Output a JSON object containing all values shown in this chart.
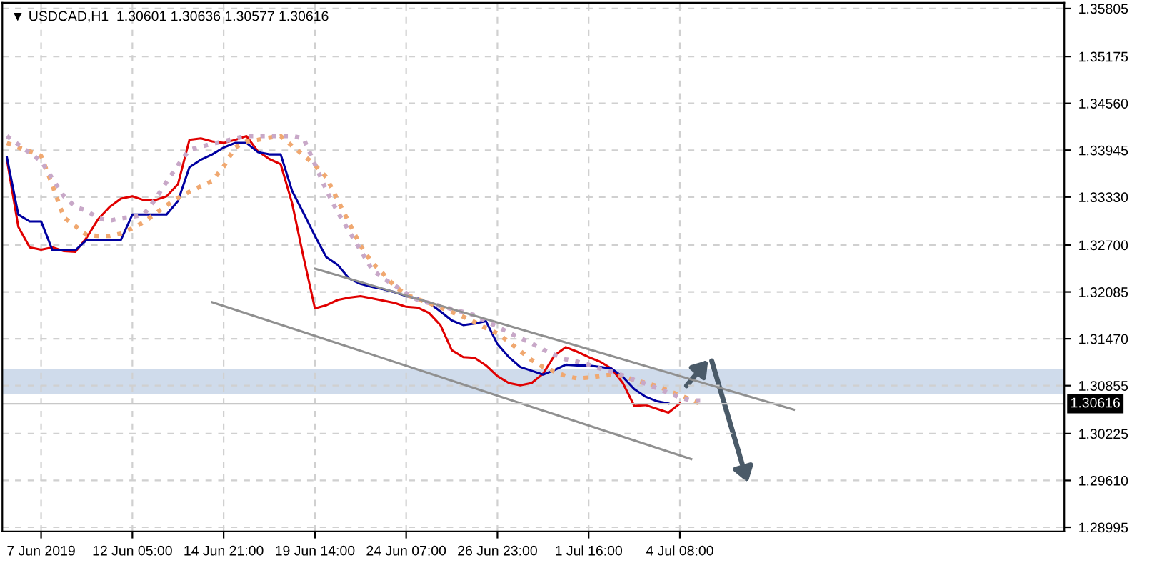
{
  "chart_data": {
    "type": "line",
    "title": "▼ USDCAD,H1  1.30601 1.30636 1.30577 1.30616",
    "categories": [
      null,
      null,
      null,
      "7 Jun 2019",
      null,
      null,
      null,
      null,
      null,
      null,
      null,
      "12 Jun 05:00",
      null,
      null,
      null,
      null,
      null,
      null,
      null,
      "14 Jun 21:00",
      null,
      null,
      null,
      null,
      null,
      null,
      null,
      "19 Jun 14:00",
      null,
      null,
      null,
      null,
      null,
      null,
      null,
      "24 Jun 07:00",
      null,
      null,
      null,
      null,
      null,
      null,
      null,
      "26 Jun 23:00",
      null,
      null,
      null,
      null,
      null,
      null,
      null,
      "1 Jul 16:00",
      null,
      null,
      null,
      null,
      null,
      null,
      null,
      "4 Jul 08:00",
      null,
      null,
      null,
      null,
      null,
      null,
      null,
      null,
      null,
      null,
      null,
      null,
      null,
      null,
      null,
      null,
      null,
      null,
      null,
      null,
      null,
      null,
      null,
      null,
      null,
      null,
      null,
      null,
      null,
      null,
      null,
      null,
      null
    ],
    "ylim": [
      1.2894,
      1.3588
    ],
    "yticks": [
      {
        "value": 1.35805,
        "label": "1.35805"
      },
      {
        "value": 1.35175,
        "label": "1.35175"
      },
      {
        "value": 1.3456,
        "label": "1.34560"
      },
      {
        "value": 1.33945,
        "label": "1.33945"
      },
      {
        "value": 1.3333,
        "label": "1.33330"
      },
      {
        "value": 1.327,
        "label": "1.32700"
      },
      {
        "value": 1.32085,
        "label": "1.32085"
      },
      {
        "value": 1.3147,
        "label": "1.31470"
      },
      {
        "value": 1.30855,
        "label": "1.30855"
      },
      {
        "value": 1.30225,
        "label": "1.30225"
      },
      {
        "value": 1.2961,
        "label": "1.29610"
      },
      {
        "value": 1.28995,
        "label": "1.28995"
      }
    ],
    "grid": true,
    "series": [
      {
        "color": "#e00000",
        "values": [
          1.3382,
          1.3294,
          1.3267,
          1.3264,
          1.3267,
          1.3262,
          1.3261,
          1.328,
          1.3304,
          1.332,
          1.3331,
          1.3334,
          1.3329,
          1.3329,
          1.3334,
          1.335,
          1.3408,
          1.341,
          1.3406,
          1.3404,
          1.3408,
          1.3413,
          1.3393,
          1.3383,
          1.3376,
          1.3325,
          1.3254,
          1.3187,
          1.3191,
          1.3198,
          1.3201,
          1.3203,
          1.32,
          1.3197,
          1.3194,
          1.3189,
          1.3188,
          1.3181,
          1.3165,
          1.3132,
          1.3123,
          1.3122,
          1.3112,
          1.3098,
          1.3089,
          1.3086,
          1.3089,
          1.3101,
          1.3125,
          1.3136,
          1.313,
          1.3123,
          1.3117,
          1.3108,
          1.3089,
          1.3059,
          1.306,
          1.3055,
          1.305,
          1.3062,
          null,
          null,
          null,
          null,
          null,
          null,
          null,
          null,
          null,
          null,
          null,
          null,
          null,
          null,
          null,
          null,
          null,
          null,
          null,
          null,
          null,
          null,
          null,
          null,
          null,
          null,
          null,
          null,
          null,
          null,
          null,
          null,
          null
        ]
      },
      {
        "color": "#0000a0",
        "values": [
          1.3385,
          1.331,
          1.3301,
          1.3301,
          1.3263,
          1.3263,
          1.3263,
          1.3277,
          1.3277,
          1.3277,
          1.3277,
          1.331,
          1.331,
          1.331,
          1.331,
          1.3328,
          1.3372,
          1.3382,
          1.3389,
          1.3398,
          1.3404,
          1.3404,
          1.3392,
          1.3389,
          1.3389,
          1.3341,
          1.3312,
          1.3282,
          1.3254,
          1.3244,
          1.3226,
          1.3219,
          1.3215,
          1.3212,
          1.3208,
          1.3203,
          1.32,
          1.3194,
          1.3183,
          1.3171,
          1.3165,
          1.3167,
          1.317,
          1.314,
          1.3123,
          1.311,
          1.3105,
          1.31,
          1.3106,
          1.3113,
          1.3112,
          1.3112,
          1.311,
          1.3108,
          1.3097,
          1.3081,
          1.3071,
          1.3065,
          1.3062,
          null,
          null,
          null,
          null,
          null,
          null,
          null,
          null,
          null,
          null,
          null,
          null,
          null,
          null,
          null,
          null,
          null,
          null,
          null,
          null,
          null,
          null,
          null,
          null,
          null,
          null,
          null,
          null,
          null,
          null,
          null,
          null,
          null,
          null
        ]
      },
      {
        "color": "#f0a870",
        "line_style": "dotted",
        "values": [
          1.3404,
          1.3398,
          1.3393,
          1.3387,
          1.3348,
          1.3306,
          1.3295,
          1.3283,
          1.3282,
          1.3282,
          1.3285,
          1.3292,
          1.33,
          1.3311,
          1.3322,
          1.3332,
          1.334,
          1.3347,
          1.3354,
          1.3373,
          1.3398,
          1.3406,
          1.3408,
          1.3411,
          1.3413,
          1.34,
          1.3388,
          1.3375,
          1.3359,
          1.3329,
          1.3299,
          1.3269,
          1.3247,
          1.3232,
          1.3216,
          1.3205,
          1.3199,
          1.3194,
          1.3188,
          1.3182,
          1.3176,
          1.3169,
          1.3161,
          1.3154,
          1.3143,
          1.3131,
          1.3119,
          1.311,
          1.3104,
          1.3098,
          1.3095,
          1.3096,
          1.3098,
          1.31,
          1.3098,
          1.3093,
          1.3089,
          1.3085,
          1.3079,
          1.3073,
          1.3067,
          1.306,
          null,
          null,
          null,
          null,
          null,
          null,
          null,
          null,
          null,
          null,
          null,
          null,
          null,
          null,
          null,
          null,
          null,
          null,
          null,
          null,
          null,
          null,
          null,
          null,
          null,
          null,
          null,
          null,
          null,
          null,
          null
        ]
      },
      {
        "color": "#c8a8c8",
        "line_style": "dotted",
        "values": [
          1.3413,
          1.3402,
          1.3391,
          1.338,
          1.3357,
          1.3334,
          1.332,
          1.3315,
          1.3305,
          1.3302,
          1.3305,
          1.3307,
          1.331,
          1.333,
          1.3353,
          1.3375,
          1.3395,
          1.3399,
          1.3403,
          1.3406,
          1.341,
          1.3413,
          1.3413,
          1.3413,
          1.3413,
          1.3413,
          1.341,
          1.3376,
          1.3342,
          1.3313,
          1.3288,
          1.3263,
          1.3238,
          1.3226,
          1.3217,
          1.3207,
          1.3198,
          1.3194,
          1.319,
          1.3186,
          1.3182,
          1.3178,
          1.317,
          1.3163,
          1.3155,
          1.3148,
          1.3141,
          1.3133,
          1.3126,
          1.312,
          1.3117,
          1.3113,
          1.3108,
          1.3104,
          1.3099,
          1.3093,
          1.3088,
          1.3082,
          1.3076,
          1.307,
          1.3066,
          1.3066,
          null,
          null,
          null,
          null,
          null,
          null,
          null,
          null,
          null,
          null,
          null,
          null,
          null,
          null,
          null,
          null,
          null,
          null,
          null,
          null,
          null,
          null,
          null,
          null,
          null,
          null,
          null,
          null,
          null,
          null,
          null
        ]
      },
      {
        "color": "#909090",
        "values": [
          null,
          null,
          null,
          null,
          null,
          null,
          null,
          null,
          null,
          null,
          null,
          null,
          null,
          null,
          null,
          null,
          null,
          null,
          null,
          null,
          null,
          null,
          null,
          null,
          null,
          null,
          null,
          1.3239,
          null,
          null,
          null,
          null,
          null,
          null,
          null,
          null,
          null,
          null,
          null,
          null,
          null,
          null,
          null,
          null,
          null,
          null,
          null,
          null,
          null,
          null,
          null,
          null,
          null,
          null,
          null,
          null,
          null,
          null,
          null,
          null,
          null,
          null,
          null,
          null,
          null,
          null,
          null,
          null,
          null,
          1.3054,
          null,
          null,
          null,
          null,
          null,
          null,
          null,
          null,
          null,
          null,
          null,
          null,
          null,
          null,
          null,
          null,
          null,
          null,
          null,
          null,
          null,
          null,
          null
        ]
      },
      {
        "color": "#909090",
        "values": [
          null,
          null,
          null,
          null,
          null,
          null,
          null,
          null,
          null,
          null,
          null,
          null,
          null,
          null,
          null,
          null,
          null,
          null,
          1.3195,
          null,
          null,
          null,
          null,
          null,
          null,
          null,
          null,
          null,
          null,
          null,
          null,
          null,
          null,
          null,
          null,
          null,
          null,
          null,
          null,
          null,
          null,
          null,
          null,
          null,
          null,
          null,
          null,
          null,
          null,
          null,
          null,
          null,
          null,
          null,
          null,
          null,
          null,
          null,
          null,
          null,
          1.2989,
          null,
          null,
          null,
          null,
          null,
          null,
          null,
          null,
          null,
          null,
          null,
          null,
          null,
          null,
          null,
          null,
          null,
          null,
          null,
          null,
          null,
          null,
          null,
          null,
          null,
          null,
          null,
          null,
          null,
          null,
          null,
          null
        ]
      }
    ],
    "ref_lines": [
      {
        "axis": "y",
        "value": 1.30616,
        "label": "1.30616",
        "color": "#c8c8c8"
      }
    ],
    "bands": [
      {
        "axis": "y",
        "from": 1.3076,
        "to": 1.3106,
        "color": "#b0c4de"
      }
    ]
  }
}
